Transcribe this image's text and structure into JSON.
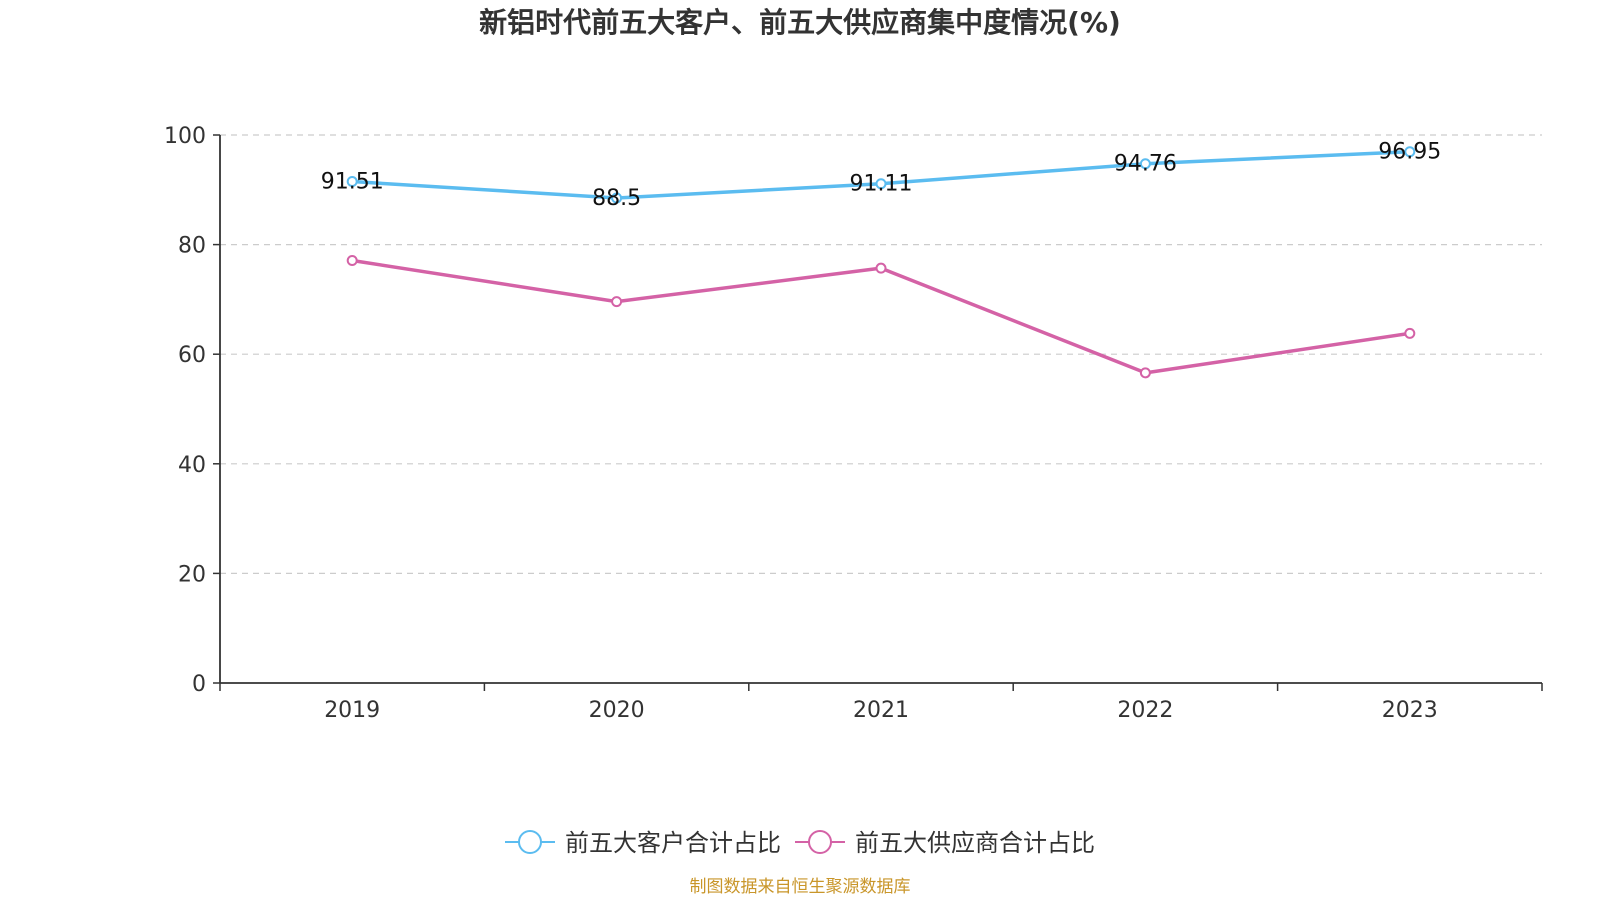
{
  "chart_data": {
    "type": "line",
    "title": "新铝时代前五大客户、前五大供应商集中度情况(%)",
    "categories": [
      "2019",
      "2020",
      "2021",
      "2022",
      "2023"
    ],
    "ylim": [
      0,
      100
    ],
    "yticks": [
      0,
      20,
      40,
      60,
      80,
      100
    ],
    "grid": true,
    "legend_position": "bottom",
    "series": [
      {
        "name": "前五大客户合计占比",
        "color": "#5bbcf0",
        "values": [
          91.51,
          88.5,
          91.11,
          94.76,
          96.95
        ],
        "show_labels": true,
        "data_labels": [
          "91.51",
          "88.5",
          "91.11",
          "94.76",
          "96.95"
        ]
      },
      {
        "name": "前五大供应商合计占比",
        "color": "#d462a6",
        "values": [
          77.1,
          69.6,
          75.7,
          56.6,
          63.8
        ],
        "show_labels": false
      }
    ],
    "source": "制图数据来自恒生聚源数据库"
  }
}
